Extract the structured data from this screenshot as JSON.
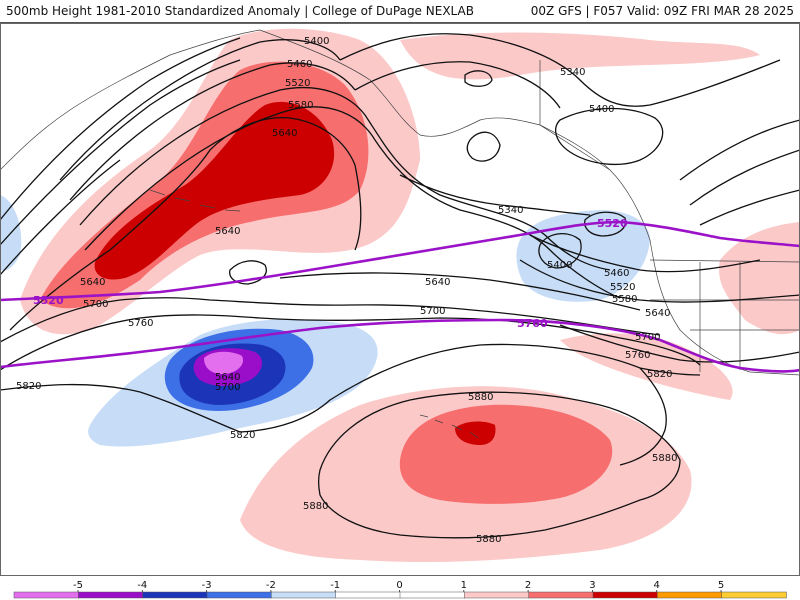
{
  "header": {
    "title": "500mb Height 1981-2010 Standardized Anomaly | College of DuPage NEXLAB",
    "run_info": "00Z GFS | F057 Valid: 09Z FRI MAR 28 2025"
  },
  "colors": {
    "pos1": "#fcc9c9",
    "pos2": "#f76e6e",
    "pos3": "#cc0000",
    "neg1": "#c6dcf7",
    "neg2": "#3d6fe6",
    "neg3": "#1c34b8",
    "neg4": "#9a0ec9",
    "neg5": "#e46fee",
    "contour": "#111111",
    "highlight": "#9b12c8"
  },
  "contour_labels": {
    "c5400_a": "5400",
    "c5460_a": "5460",
    "c5520_a": "5520",
    "c5580_a": "5580",
    "c5640_a": "5640",
    "c5640_b": "5640",
    "c5640_c": "5640",
    "c5640_d": "5640",
    "c5640_e": "5640",
    "c5640_f": "5640",
    "c5700_a": "5700",
    "c5700_b": "5700",
    "c5700_c": "5700",
    "c5700_d": "5700",
    "c5760_a": "5760",
    "c5760_b": "5760",
    "c5820_a": "5820",
    "c5820_b": "5820",
    "c5820_c": "5820",
    "c5880_a": "5880",
    "c5880_b": "5880",
    "c5880_c": "5880",
    "c5880_d": "5880",
    "c5340_a": "5340",
    "c5340_b": "5340",
    "c5400_b": "5400",
    "c5400_c": "5400",
    "c5460_b": "5460",
    "c5520_b": "5520",
    "c5580_b": "5580"
  },
  "highlight_labels": {
    "h5520_left": "5520",
    "h5520_right": "5520",
    "h5760": "5760"
  },
  "legend": {
    "ticks": [
      "-5",
      "-4",
      "-3",
      "-2",
      "-1",
      "0",
      "1",
      "2",
      "3",
      "4",
      "5"
    ],
    "colors": [
      "#e46fee",
      "#9a0ec9",
      "#1c34b8",
      "#3d6fe6",
      "#c6dcf7",
      "#ffffff",
      "#ffffff",
      "#fcc9c9",
      "#f76e6e",
      "#cc0000",
      "#ff9900",
      "#ffcc33"
    ]
  }
}
